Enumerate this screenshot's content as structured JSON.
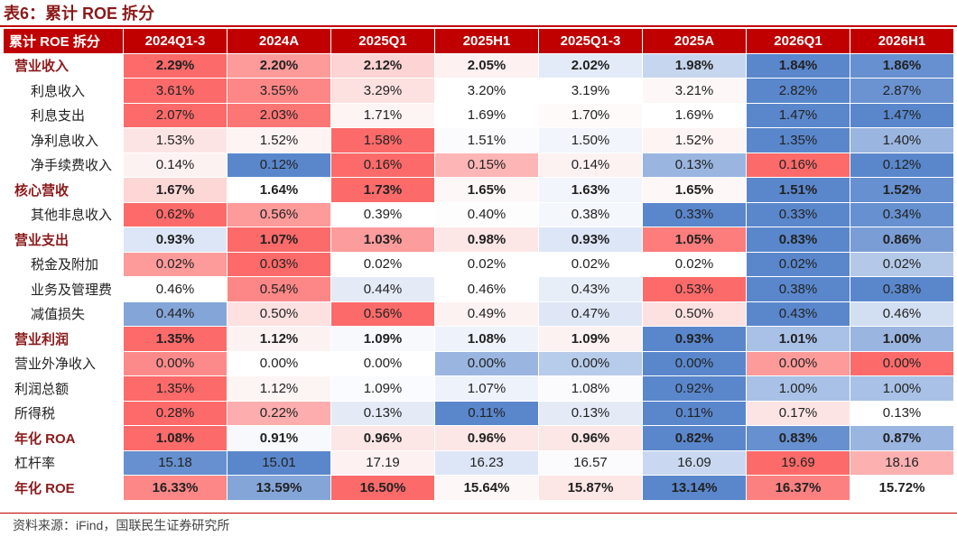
{
  "title": "表6：累计 ROE 拆分",
  "source": "资料来源：iFind，国联民生证券研究所",
  "table": {
    "headers": [
      "累计 ROE 拆分",
      "2024Q1-3",
      "2024A",
      "2025Q1",
      "2025H1",
      "2025Q1-3",
      "2025A",
      "2026Q1",
      "2026H1"
    ],
    "rows": [
      {
        "label": "营业收入",
        "style": "bold",
        "values": [
          "2.29%",
          "2.20%",
          "2.12%",
          "2.05%",
          "2.02%",
          "1.98%",
          "1.84%",
          "1.86%"
        ],
        "colors": [
          "#fc6a6a",
          "#fd9a9a",
          "#fdd3d3",
          "#fdf1f1",
          "#e3ebf8",
          "#c7d6ef",
          "#5a87cc",
          "#6690cf"
        ]
      },
      {
        "label": "利息收入",
        "style": "sub",
        "values": [
          "3.61%",
          "3.55%",
          "3.29%",
          "3.20%",
          "3.19%",
          "3.21%",
          "2.82%",
          "2.87%"
        ],
        "colors": [
          "#fc6a6a",
          "#fd8787",
          "#fde0e0",
          "#ffffff",
          "#ffffff",
          "#fdf7f7",
          "#5a87cc",
          "#6b93d1"
        ]
      },
      {
        "label": "利息支出",
        "style": "sub",
        "values": [
          "2.07%",
          "2.03%",
          "1.71%",
          "1.69%",
          "1.70%",
          "1.69%",
          "1.47%",
          "1.47%"
        ],
        "colors": [
          "#fc6a6a",
          "#fd7676",
          "#fdf4f4",
          "#ffffff",
          "#fffafa",
          "#ffffff",
          "#5a87cc",
          "#5a87cc"
        ]
      },
      {
        "label": "净利息收入",
        "style": "sub",
        "values": [
          "1.53%",
          "1.52%",
          "1.58%",
          "1.51%",
          "1.50%",
          "1.52%",
          "1.35%",
          "1.40%"
        ],
        "colors": [
          "#fde4e4",
          "#fff4f4",
          "#fc6a6a",
          "#fbfbfd",
          "#f2f5fb",
          "#fff4f4",
          "#5a87cc",
          "#9ab5e0"
        ]
      },
      {
        "label": "净手续费收入",
        "style": "sub",
        "values": [
          "0.14%",
          "0.12%",
          "0.16%",
          "0.15%",
          "0.14%",
          "0.13%",
          "0.16%",
          "0.12%"
        ],
        "colors": [
          "#fdf2f2",
          "#5a87cc",
          "#fc6a6a",
          "#fdb5b5",
          "#fdf2f2",
          "#9ab5e0",
          "#fc6a6a",
          "#5a87cc"
        ]
      },
      {
        "label": "核心营收",
        "style": "bold",
        "values": [
          "1.67%",
          "1.64%",
          "1.73%",
          "1.65%",
          "1.63%",
          "1.65%",
          "1.51%",
          "1.52%"
        ],
        "colors": [
          "#fdd6d6",
          "#ffffff",
          "#fc6a6a",
          "#fdf7f7",
          "#f2f5fb",
          "#fdf7f7",
          "#5a87cc",
          "#6690cf"
        ]
      },
      {
        "label": "其他非息收入",
        "style": "sub",
        "values": [
          "0.62%",
          "0.56%",
          "0.39%",
          "0.40%",
          "0.38%",
          "0.33%",
          "0.33%",
          "0.34%"
        ],
        "colors": [
          "#fc6a6a",
          "#fd9a9a",
          "#ffffff",
          "#fdfdfd",
          "#f4f7fc",
          "#5a87cc",
          "#5a87cc",
          "#6690cf"
        ]
      },
      {
        "label": "营业支出",
        "style": "bold",
        "values": [
          "0.93%",
          "1.07%",
          "1.03%",
          "0.98%",
          "0.93%",
          "1.05%",
          "0.83%",
          "0.86%"
        ],
        "colors": [
          "#dde6f6",
          "#fc6a6a",
          "#fd9c9c",
          "#fde6e6",
          "#dde6f6",
          "#fd7d7d",
          "#5a87cc",
          "#7a9dd5"
        ]
      },
      {
        "label": "税金及附加",
        "style": "sub",
        "values": [
          "0.02%",
          "0.03%",
          "0.02%",
          "0.02%",
          "0.02%",
          "0.02%",
          "0.02%",
          "0.02%"
        ],
        "colors": [
          "#fd9a9a",
          "#fc6a6a",
          "#ffffff",
          "#ffffff",
          "#ffffff",
          "#ffffff",
          "#5a87cc",
          "#b4c8e8"
        ]
      },
      {
        "label": "业务及管理费",
        "style": "sub",
        "values": [
          "0.46%",
          "0.54%",
          "0.44%",
          "0.46%",
          "0.43%",
          "0.53%",
          "0.38%",
          "0.38%"
        ],
        "colors": [
          "#ffffff",
          "#fd8787",
          "#e4ebf7",
          "#ffffff",
          "#e8eef8",
          "#fc6a6a",
          "#5a87cc",
          "#5a87cc"
        ]
      },
      {
        "label": "减值损失",
        "style": "sub",
        "values": [
          "0.44%",
          "0.50%",
          "0.56%",
          "0.49%",
          "0.47%",
          "0.50%",
          "0.43%",
          "0.46%"
        ],
        "colors": [
          "#84a5d8",
          "#fde0e0",
          "#fc6a6a",
          "#fdf2f2",
          "#dfe7f6",
          "#fde0e0",
          "#5a87cc",
          "#d2def2"
        ]
      },
      {
        "label": "营业利润",
        "style": "bold",
        "values": [
          "1.35%",
          "1.12%",
          "1.09%",
          "1.08%",
          "1.09%",
          "0.93%",
          "1.01%",
          "1.00%"
        ],
        "colors": [
          "#fc6a6a",
          "#fdf2f2",
          "#f7f9fd",
          "#eef2fa",
          "#fdf2f2",
          "#5a87cc",
          "#a9c1e6",
          "#9ab5e0"
        ]
      },
      {
        "label": "营业外净收入",
        "style": "plain",
        "values": [
          "0.00%",
          "0.00%",
          "0.00%",
          "0.00%",
          "0.00%",
          "0.00%",
          "0.00%",
          "0.00%"
        ],
        "colors": [
          "#fd8a8a",
          "#ffffff",
          "#ffffff",
          "#9ab5e0",
          "#b7cbea",
          "#5a87cc",
          "#fd9a9a",
          "#fc6a6a"
        ]
      },
      {
        "label": "利润总额",
        "style": "plain",
        "values": [
          "1.35%",
          "1.12%",
          "1.09%",
          "1.07%",
          "1.08%",
          "0.92%",
          "1.00%",
          "1.00%"
        ],
        "colors": [
          "#fc6a6a",
          "#fdf4f4",
          "#fafbfe",
          "#eef2fa",
          "#fbfbfd",
          "#5a87cc",
          "#a9c1e6",
          "#a9c1e6"
        ]
      },
      {
        "label": "所得税",
        "style": "plain",
        "values": [
          "0.28%",
          "0.22%",
          "0.13%",
          "0.11%",
          "0.13%",
          "0.11%",
          "0.17%",
          "0.13%"
        ],
        "colors": [
          "#fc6a6a",
          "#fdadad",
          "#e4ebf7",
          "#5a87cc",
          "#e4ebf7",
          "#5a87cc",
          "#fde4e4",
          "#ffffff"
        ]
      },
      {
        "label": "年化 ROA",
        "style": "bold",
        "values": [
          "1.08%",
          "0.91%",
          "0.96%",
          "0.96%",
          "0.96%",
          "0.82%",
          "0.83%",
          "0.87%"
        ],
        "colors": [
          "#fc6a6a",
          "#f7f9fd",
          "#fde6e6",
          "#fde6e6",
          "#fde6e6",
          "#5a87cc",
          "#6690cf",
          "#9ab5e0"
        ]
      },
      {
        "label": "杠杆率",
        "style": "plain",
        "values": [
          "15.18",
          "15.01",
          "17.19",
          "16.23",
          "16.57",
          "16.09",
          "19.69",
          "18.16"
        ],
        "colors": [
          "#6690cf",
          "#5a87cc",
          "#fdf1f1",
          "#dde6f6",
          "#fbfbfd",
          "#c9d8f0",
          "#fc6a6a",
          "#fdb0b0"
        ]
      },
      {
        "label": "年化 ROE",
        "style": "bold",
        "values": [
          "16.33%",
          "13.59%",
          "16.50%",
          "15.64%",
          "15.87%",
          "13.14%",
          "16.37%",
          "15.72%"
        ],
        "colors": [
          "#fd8787",
          "#84a5d8",
          "#fc6a6a",
          "#fdf7f7",
          "#fde6e6",
          "#5a87cc",
          "#fd8080",
          "#ffffff"
        ]
      }
    ]
  }
}
